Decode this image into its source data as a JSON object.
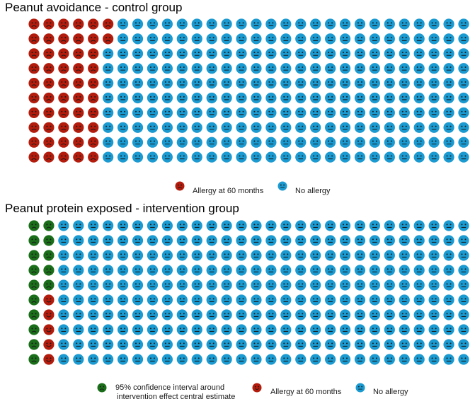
{
  "colors": {
    "allergy": "#b31c0c",
    "no_allergy": "#1a9ad0",
    "ci": "#1a6e1a"
  },
  "chart_data": [
    {
      "type": "waffle",
      "title": "Peanut avoidance - control group",
      "grid": {
        "rows": 10,
        "cols": 30,
        "fill_order": "column-major, top to bottom"
      },
      "counts": {
        "allergy": 52,
        "no_allergy": 248
      },
      "legend": [
        {
          "label": "Allergy at 60 months",
          "color_key": "allergy",
          "icon": "frown-face-icon"
        },
        {
          "label": "No allergy",
          "color_key": "no_allergy",
          "icon": "neutral-face-icon"
        }
      ]
    },
    {
      "type": "waffle",
      "title": "Peanut protein exposed - intervention group",
      "grid": {
        "rows": 10,
        "cols": 30,
        "fill_order": "column-major, top to bottom"
      },
      "counts": {
        "ci": 15,
        "allergy": 5,
        "no_allergy": 280
      },
      "legend": [
        {
          "label": "95% confidence interval around\nintervention effect central estimate",
          "color_key": "ci",
          "icon": "frown-face-icon"
        },
        {
          "label": "Allergy at 60 months",
          "color_key": "allergy",
          "icon": "smile-face-icon"
        },
        {
          "label": "No allergy",
          "color_key": "no_allergy",
          "icon": "neutral-face-icon"
        }
      ]
    }
  ]
}
